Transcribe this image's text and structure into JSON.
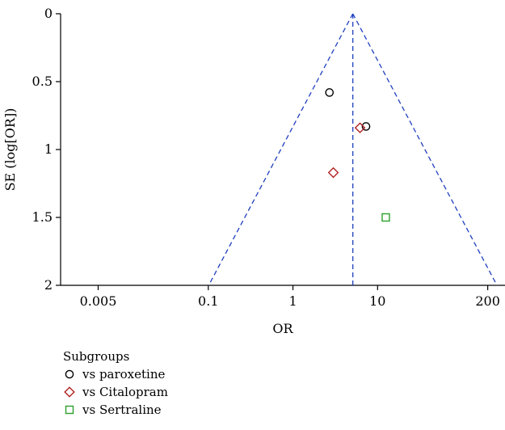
{
  "chart_data": {
    "type": "scatter",
    "subtype": "funnel-plot",
    "xlabel": "OR",
    "ylabel": "SE (log[OR])",
    "x_scale": "log",
    "y_reversed": true,
    "xlim": [
      0.0018,
      320
    ],
    "ylim": [
      0,
      2
    ],
    "x_ticks": [
      0.005,
      0.1,
      1,
      10,
      200
    ],
    "x_tick_labels": [
      "0.005",
      "0.1",
      "1",
      "10",
      "200"
    ],
    "y_ticks": [
      0,
      0.5,
      1,
      1.5,
      2
    ],
    "y_tick_labels": [
      "0",
      "0.5",
      "1",
      "1.5",
      "2"
    ],
    "pooled_or": 5.1,
    "funnel_z": 1.96,
    "grid": false,
    "legend_title": "Subgroups",
    "legend_position": "bottom-left",
    "series": [
      {
        "name": "vs paroxetine",
        "marker": "circle",
        "color": "#000000",
        "points": [
          [
            2.7,
            0.58
          ],
          [
            7.3,
            0.83
          ]
        ]
      },
      {
        "name": "vs Citalopram",
        "marker": "diamond",
        "color": "#b22222",
        "points": [
          [
            6.2,
            0.84
          ],
          [
            3.0,
            1.17
          ]
        ]
      },
      {
        "name": "vs Sertraline",
        "marker": "square",
        "color": "#2ca02c",
        "points": [
          [
            12.5,
            1.5
          ]
        ]
      }
    ],
    "funnel_color": "#1f3fbf"
  }
}
